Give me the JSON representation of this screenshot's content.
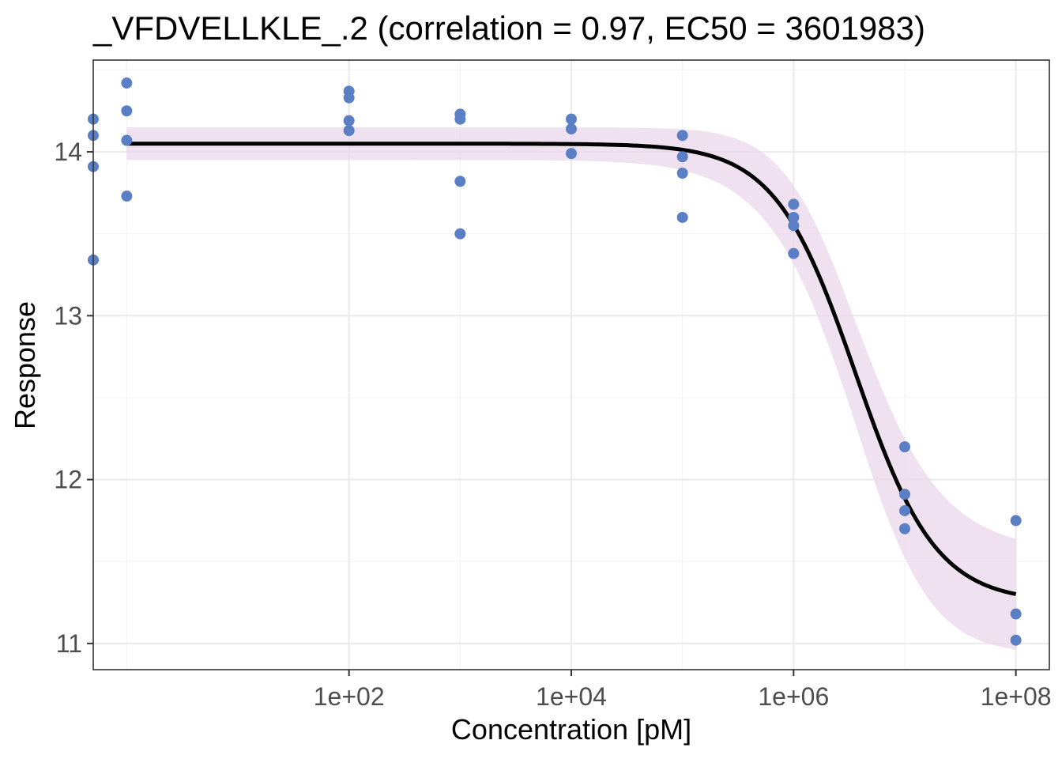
{
  "chart_data": {
    "type": "scatter",
    "title": "_VFDVELLKLE_.2 (correlation = 0.97, EC50 = 3601983)",
    "xlabel": "Concentration [pM]",
    "ylabel": "Response",
    "x_scale": "log10",
    "xlim": [
      0.5,
      200000000
    ],
    "ylim": [
      10.84,
      14.56
    ],
    "x_ticks": [
      {
        "value": 100,
        "label": "1e+02"
      },
      {
        "value": 10000,
        "label": "1e+04"
      },
      {
        "value": 1000000,
        "label": "1e+06"
      },
      {
        "value": 100000000,
        "label": "1e+08"
      }
    ],
    "y_ticks": [
      {
        "value": 11,
        "label": "11"
      },
      {
        "value": 12,
        "label": "12"
      },
      {
        "value": 13,
        "label": "13"
      },
      {
        "value": 14,
        "label": "14"
      }
    ],
    "grid": true,
    "points": [
      {
        "x": 0.5,
        "y": 14.2
      },
      {
        "x": 0.5,
        "y": 14.1
      },
      {
        "x": 0.5,
        "y": 13.91
      },
      {
        "x": 0.5,
        "y": 13.34
      },
      {
        "x": 1,
        "y": 14.42
      },
      {
        "x": 1,
        "y": 14.25
      },
      {
        "x": 1,
        "y": 14.07
      },
      {
        "x": 1,
        "y": 13.73
      },
      {
        "x": 100,
        "y": 14.37
      },
      {
        "x": 100,
        "y": 14.33
      },
      {
        "x": 100,
        "y": 14.19
      },
      {
        "x": 100,
        "y": 14.13
      },
      {
        "x": 1000,
        "y": 14.23
      },
      {
        "x": 1000,
        "y": 14.2
      },
      {
        "x": 1000,
        "y": 13.82
      },
      {
        "x": 1000,
        "y": 13.5
      },
      {
        "x": 10000,
        "y": 14.2
      },
      {
        "x": 10000,
        "y": 14.14
      },
      {
        "x": 10000,
        "y": 13.99
      },
      {
        "x": 100000,
        "y": 14.1
      },
      {
        "x": 100000,
        "y": 13.97
      },
      {
        "x": 100000,
        "y": 13.87
      },
      {
        "x": 100000,
        "y": 13.6
      },
      {
        "x": 1000000,
        "y": 13.68
      },
      {
        "x": 1000000,
        "y": 13.6
      },
      {
        "x": 1000000,
        "y": 13.55
      },
      {
        "x": 1000000,
        "y": 13.38
      },
      {
        "x": 10000000,
        "y": 12.2
      },
      {
        "x": 10000000,
        "y": 11.91
      },
      {
        "x": 10000000,
        "y": 11.81
      },
      {
        "x": 10000000,
        "y": 11.7
      },
      {
        "x": 100000000,
        "y": 11.75
      },
      {
        "x": 100000000,
        "y": 11.18
      },
      {
        "x": 100000000,
        "y": 11.02
      }
    ],
    "fit_curve": {
      "model": "4-parameter logistic",
      "top": 14.05,
      "bottom": 11.25,
      "ec50": 3601983,
      "hill_slope": 1.2,
      "x_range": [
        1,
        100000000
      ],
      "confidence_band": {
        "x": [
          1,
          100000,
          300000,
          1000000,
          10000000,
          100000000
        ],
        "upper": [
          14.16,
          14.13,
          14.06,
          13.78,
          12.16,
          11.62
        ],
        "lower": [
          13.94,
          13.95,
          13.88,
          13.35,
          11.68,
          11.0
        ]
      }
    },
    "colors": {
      "points": "#5b7fc4",
      "curve": "#000000",
      "band": "#ead7ea"
    }
  }
}
